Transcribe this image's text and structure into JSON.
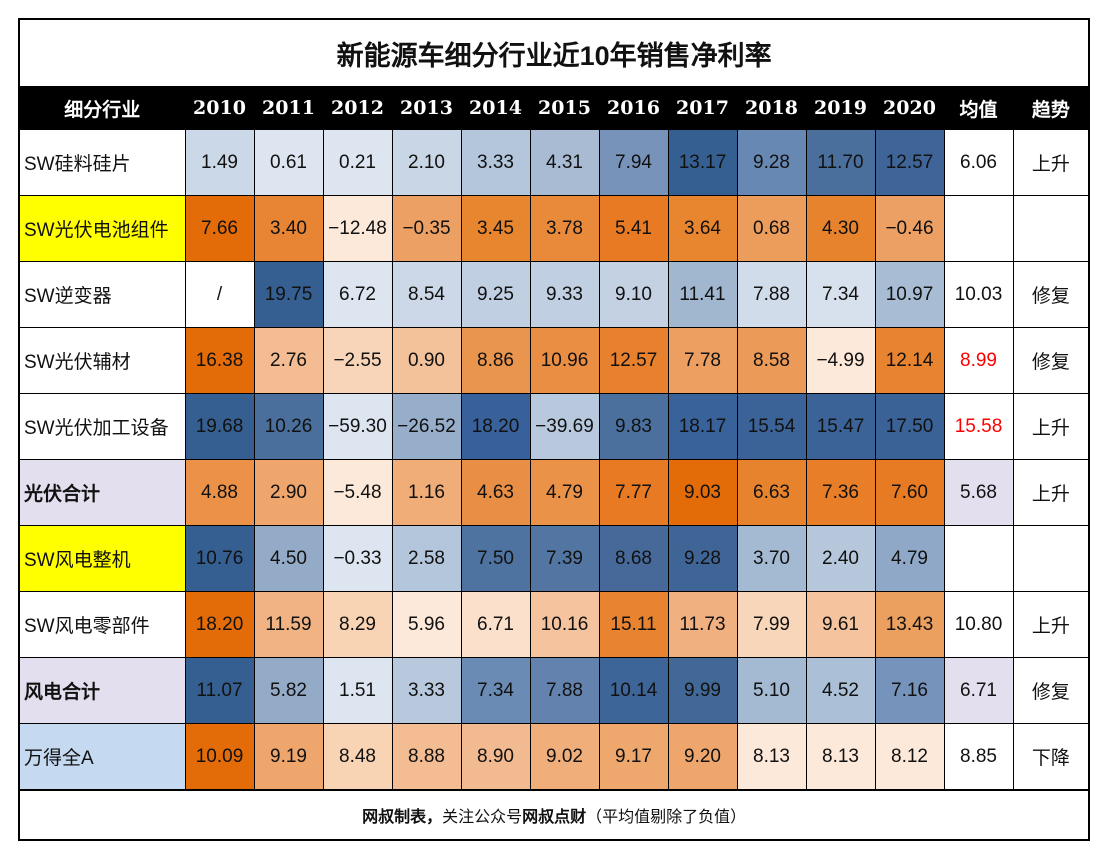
{
  "title": "新能源车细分行业近10年销售净利率",
  "headers": [
    "细分行业",
    "2010",
    "2011",
    "2012",
    "2013",
    "2014",
    "2015",
    "2016",
    "2017",
    "2018",
    "2019",
    "2020",
    "均值",
    "趋势"
  ],
  "footer": {
    "part1": "网叔制表，",
    "part2": "关注公众号",
    "part3": "网叔点财",
    "part4": "（平均值剔除了负值）"
  },
  "colors": {
    "header_bg": "#000000",
    "highlight_yellow": "#ffff00",
    "subtotal_bg": "#e4dfee",
    "market_bg": "#c5d9f1",
    "avg_red": "#ff0000"
  },
  "chart_data": {
    "type": "heatmap",
    "title": "新能源车细分行业近10年销售净利率",
    "columns": [
      "2010",
      "2011",
      "2012",
      "2013",
      "2014",
      "2015",
      "2016",
      "2017",
      "2018",
      "2019",
      "2020"
    ],
    "rows": [
      {
        "label": "SW硅料硅片",
        "label_bg": "#ffffff",
        "bold": false,
        "avg": "6.06",
        "avg_color": "#111111",
        "avg_bg": "#ffffff",
        "trend": "上升",
        "cells": [
          {
            "v": "1.49",
            "bg": "#cbd8e8"
          },
          {
            "v": "0.61",
            "bg": "#dce5f0"
          },
          {
            "v": "0.21",
            "bg": "#dce5f0"
          },
          {
            "v": "2.10",
            "bg": "#c9d6e6"
          },
          {
            "v": "3.33",
            "bg": "#b4c6dc"
          },
          {
            "v": "4.31",
            "bg": "#a8bbd3"
          },
          {
            "v": "7.94",
            "bg": "#7893b9"
          },
          {
            "v": "13.17",
            "bg": "#365f91"
          },
          {
            "v": "9.28",
            "bg": "#6688b2"
          },
          {
            "v": "11.70",
            "bg": "#4a6f9c"
          },
          {
            "v": "12.57",
            "bg": "#3f6598"
          }
        ]
      },
      {
        "label": "SW光伏电池组件",
        "label_bg": "#ffff00",
        "bold": false,
        "avg": "",
        "avg_color": "#111111",
        "avg_bg": "#ffffff",
        "trend": "",
        "cells": [
          {
            "v": "7.66",
            "bg": "#e36c09"
          },
          {
            "v": "3.40",
            "bg": "#e88535"
          },
          {
            "v": "−12.48",
            "bg": "#fde9da"
          },
          {
            "v": "−0.35",
            "bg": "#eda064"
          },
          {
            "v": "3.45",
            "bg": "#e8852f"
          },
          {
            "v": "3.78",
            "bg": "#e98a3b"
          },
          {
            "v": "5.41",
            "bg": "#e77a22"
          },
          {
            "v": "3.64",
            "bg": "#e8862f"
          },
          {
            "v": "0.68",
            "bg": "#ec9c5b"
          },
          {
            "v": "4.30",
            "bg": "#e8832d"
          },
          {
            "v": "−0.46",
            "bg": "#eda064"
          }
        ]
      },
      {
        "label": "SW逆变器",
        "label_bg": "#ffffff",
        "bold": false,
        "avg": "10.03",
        "avg_color": "#111111",
        "avg_bg": "#ffffff",
        "trend": "修复",
        "cells": [
          {
            "v": "/",
            "bg": "#ffffff"
          },
          {
            "v": "19.75",
            "bg": "#365f91"
          },
          {
            "v": "6.72",
            "bg": "#dce5f0"
          },
          {
            "v": "8.54",
            "bg": "#ccd8e7"
          },
          {
            "v": "9.25",
            "bg": "#c0cfe2"
          },
          {
            "v": "9.33",
            "bg": "#c0cfe2"
          },
          {
            "v": "9.10",
            "bg": "#c3d1e3"
          },
          {
            "v": "11.41",
            "bg": "#a1b7d0"
          },
          {
            "v": "7.88",
            "bg": "#d0dce9"
          },
          {
            "v": "7.34",
            "bg": "#d7e1ed"
          },
          {
            "v": "10.97",
            "bg": "#a8bcd3"
          }
        ]
      },
      {
        "label": "SW光伏辅材",
        "label_bg": "#ffffff",
        "bold": false,
        "avg": "8.99",
        "avg_color": "#ff0000",
        "avg_bg": "#ffffff",
        "trend": "修复",
        "cells": [
          {
            "v": "16.38",
            "bg": "#e36c09"
          },
          {
            "v": "2.76",
            "bg": "#f3bc93"
          },
          {
            "v": "−2.55",
            "bg": "#f8d5b8"
          },
          {
            "v": "0.90",
            "bg": "#f4c29a"
          },
          {
            "v": "8.86",
            "bg": "#e9954e"
          },
          {
            "v": "10.96",
            "bg": "#e98e42"
          },
          {
            "v": "12.57",
            "bg": "#e8812e"
          },
          {
            "v": "7.78",
            "bg": "#ec9f60"
          },
          {
            "v": "8.58",
            "bg": "#eb9a57"
          },
          {
            "v": "−4.99",
            "bg": "#fde9da"
          },
          {
            "v": "12.14",
            "bg": "#e8842f"
          }
        ]
      },
      {
        "label": "SW光伏加工设备",
        "label_bg": "#ffffff",
        "bold": false,
        "avg": "15.58",
        "avg_color": "#ff0000",
        "avg_bg": "#ffffff",
        "trend": "上升",
        "cells": [
          {
            "v": "19.68",
            "bg": "#365f91"
          },
          {
            "v": "10.26",
            "bg": "#4a6f9c"
          },
          {
            "v": "−59.30",
            "bg": "#dce5f0"
          },
          {
            "v": "−26.52",
            "bg": "#97aecb"
          },
          {
            "v": "18.20",
            "bg": "#38609a"
          },
          {
            "v": "−39.69",
            "bg": "#b8c9dd"
          },
          {
            "v": "9.83",
            "bg": "#4b709d"
          },
          {
            "v": "18.17",
            "bg": "#39619a"
          },
          {
            "v": "15.54",
            "bg": "#3b6397"
          },
          {
            "v": "15.47",
            "bg": "#3b6397"
          },
          {
            "v": "17.50",
            "bg": "#3a6296"
          }
        ]
      },
      {
        "label": "光伏合计",
        "label_bg": "#e4dfee",
        "bold": true,
        "avg": "5.68",
        "avg_color": "#111111",
        "avg_bg": "#e4dfee",
        "trend": "上升",
        "cells": [
          {
            "v": "4.88",
            "bg": "#eb9248"
          },
          {
            "v": "2.90",
            "bg": "#eea66c"
          },
          {
            "v": "−5.48",
            "bg": "#fde9da"
          },
          {
            "v": "1.16",
            "bg": "#f0ad78"
          },
          {
            "v": "4.63",
            "bg": "#e98f45"
          },
          {
            "v": "4.79",
            "bg": "#ea9248"
          },
          {
            "v": "7.77",
            "bg": "#e77a22"
          },
          {
            "v": "9.03",
            "bg": "#e36c09"
          },
          {
            "v": "6.63",
            "bg": "#e8832d"
          },
          {
            "v": "7.36",
            "bg": "#e87f28"
          },
          {
            "v": "7.60",
            "bg": "#e77b23"
          }
        ]
      },
      {
        "label": "SW风电整机",
        "label_bg": "#ffff00",
        "bold": false,
        "avg": "",
        "avg_color": "#111111",
        "avg_bg": "#ffffff",
        "trend": "",
        "cells": [
          {
            "v": "10.76",
            "bg": "#365f91"
          },
          {
            "v": "4.50",
            "bg": "#94abc8"
          },
          {
            "v": "−0.33",
            "bg": "#dce5f0"
          },
          {
            "v": "2.58",
            "bg": "#b4c6dc"
          },
          {
            "v": "7.50",
            "bg": "#4f73a0"
          },
          {
            "v": "7.39",
            "bg": "#5275a1"
          },
          {
            "v": "8.68",
            "bg": "#46699a"
          },
          {
            "v": "9.28",
            "bg": "#3f6596"
          },
          {
            "v": "3.70",
            "bg": "#a4b9d2"
          },
          {
            "v": "2.40",
            "bg": "#b6c7dc"
          },
          {
            "v": "4.79",
            "bg": "#8fa8c7"
          }
        ]
      },
      {
        "label": "SW风电零部件",
        "label_bg": "#ffffff",
        "bold": false,
        "avg": "10.80",
        "avg_color": "#111111",
        "avg_bg": "#ffffff",
        "trend": "上升",
        "cells": [
          {
            "v": "18.20",
            "bg": "#e36c09"
          },
          {
            "v": "11.59",
            "bg": "#f1b384"
          },
          {
            "v": "8.29",
            "bg": "#f8d3b4"
          },
          {
            "v": "5.96",
            "bg": "#fde9da"
          },
          {
            "v": "6.71",
            "bg": "#fbe1cc"
          },
          {
            "v": "10.16",
            "bg": "#f5c39d"
          },
          {
            "v": "15.11",
            "bg": "#e8842f"
          },
          {
            "v": "11.73",
            "bg": "#f0b080"
          },
          {
            "v": "7.99",
            "bg": "#f8d6b9"
          },
          {
            "v": "9.61",
            "bg": "#f5c49e"
          },
          {
            "v": "13.43",
            "bg": "#eca05f"
          }
        ]
      },
      {
        "label": "风电合计",
        "label_bg": "#e4dfee",
        "bold": true,
        "avg": "6.71",
        "avg_color": "#111111",
        "avg_bg": "#e4dfee",
        "trend": "修复",
        "cells": [
          {
            "v": "11.07",
            "bg": "#365f91"
          },
          {
            "v": "5.82",
            "bg": "#94abc8"
          },
          {
            "v": "1.51",
            "bg": "#dce5f0"
          },
          {
            "v": "3.33",
            "bg": "#b8c9dd"
          },
          {
            "v": "7.34",
            "bg": "#6a8bb4"
          },
          {
            "v": "7.88",
            "bg": "#6383ae"
          },
          {
            "v": "10.14",
            "bg": "#3e6597"
          },
          {
            "v": "9.99",
            "bg": "#426898"
          },
          {
            "v": "5.10",
            "bg": "#a4b9d2"
          },
          {
            "v": "4.52",
            "bg": "#abbfd6"
          },
          {
            "v": "7.16",
            "bg": "#7593bb"
          }
        ]
      },
      {
        "label": "万得全A",
        "label_bg": "#c5d9f1",
        "bold": false,
        "avg": "8.85",
        "avg_color": "#111111",
        "avg_bg": "#ffffff",
        "trend": "下降",
        "cells": [
          {
            "v": "10.09",
            "bg": "#e36c09"
          },
          {
            "v": "9.19",
            "bg": "#eea66c"
          },
          {
            "v": "8.48",
            "bg": "#f8d3b4"
          },
          {
            "v": "8.88",
            "bg": "#f3bc93"
          },
          {
            "v": "8.90",
            "bg": "#f2ba90"
          },
          {
            "v": "9.02",
            "bg": "#f0ae7b"
          },
          {
            "v": "9.17",
            "bg": "#eea76d"
          },
          {
            "v": "9.20",
            "bg": "#eea66c"
          },
          {
            "v": "8.13",
            "bg": "#fde9da"
          },
          {
            "v": "8.13",
            "bg": "#fde9da"
          },
          {
            "v": "8.12",
            "bg": "#fde9da"
          }
        ]
      }
    ]
  }
}
